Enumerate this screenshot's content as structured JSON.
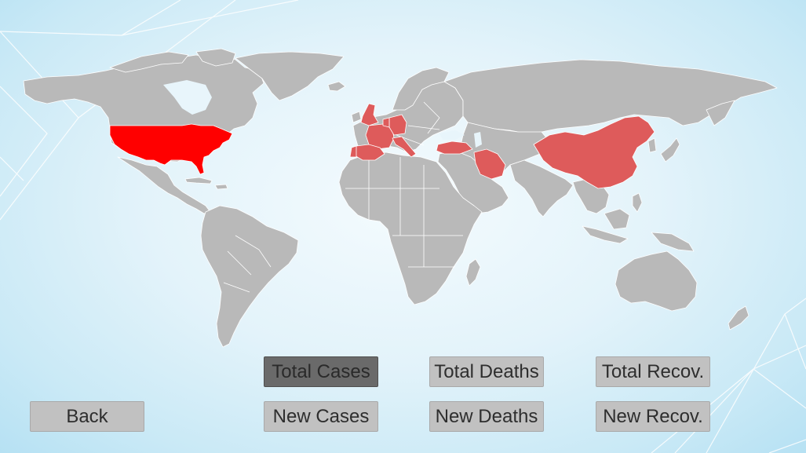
{
  "buttons": {
    "total_cases": "Total Cases",
    "total_deaths": "Total Deaths",
    "total_recov": "Total Recov.",
    "new_cases": "New Cases",
    "new_deaths": "New Deaths",
    "new_recov": "New Recov.",
    "back": "Back"
  },
  "selected_metric": "Total Cases",
  "map": {
    "colors": {
      "default": "#b9b9b9",
      "highest": "#ff0000",
      "high": "#de5b5b"
    },
    "highest_countries": [
      "United States"
    ],
    "high_countries": [
      "China",
      "Iran",
      "Turkey",
      "Italy",
      "Spain",
      "France",
      "Germany",
      "United Kingdom",
      "Switzerland",
      "Belgium",
      "Netherlands",
      "Portugal"
    ]
  }
}
